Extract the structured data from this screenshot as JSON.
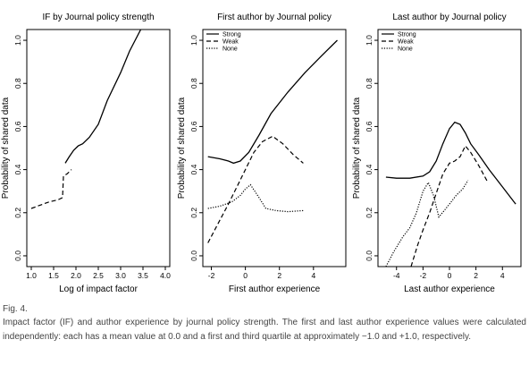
{
  "figure_label": "Fig. 4.",
  "caption": "Impact factor (IF) and author experience by journal policy strength. The first and last author experience values were calculated independently: each has a mean value at 0.0 and a first and third quartile at approximately −1.0 and +1.0, respectively.",
  "colors": {
    "line": "#000000",
    "caption_text": "#444444",
    "background": "#ffffff"
  },
  "chart_data": [
    {
      "type": "line",
      "title": "IF by Journal policy strength",
      "xlabel": "Log of impact factor",
      "ylabel": "Probability of shared data",
      "xlim": [
        0.9,
        4.1
      ],
      "ylim": [
        -0.05,
        1.05
      ],
      "xticks": [
        1.0,
        1.5,
        2.0,
        2.5,
        3.0,
        3.5,
        4.0
      ],
      "xtick_labels": [
        "1.0",
        "1.5",
        "2.0",
        "2.5",
        "3.0",
        "3.5",
        "4.0"
      ],
      "yticks": [
        0.0,
        0.2,
        0.4,
        0.6,
        0.8,
        1.0
      ],
      "ytick_labels": [
        "0.0",
        "0.2",
        "0.4",
        "0.6",
        "0.8",
        "1.0"
      ],
      "legend": null,
      "series": [
        {
          "style": "solid",
          "x": [
            1.76,
            1.85,
            1.95,
            2.05,
            2.15,
            2.3,
            2.5,
            2.7,
            3.0,
            3.2,
            3.45
          ],
          "y": [
            0.43,
            0.46,
            0.49,
            0.51,
            0.52,
            0.55,
            0.61,
            0.72,
            0.85,
            0.95,
            1.05
          ]
        },
        {
          "style": "dashed",
          "x": [
            1.0,
            1.2,
            1.4,
            1.6,
            1.7,
            1.72,
            1.8,
            1.9
          ],
          "y": [
            0.22,
            0.235,
            0.25,
            0.26,
            0.27,
            0.37,
            0.38,
            0.4
          ]
        }
      ]
    },
    {
      "type": "line",
      "title": "First author by Journal policy",
      "xlabel": "First author experience",
      "ylabel": "Probability of shared data",
      "xlim": [
        -2.5,
        5.9
      ],
      "ylim": [
        -0.05,
        1.05
      ],
      "xticks": [
        -2,
        0,
        2,
        4
      ],
      "xtick_labels": [
        "-2",
        "0",
        "2",
        "4"
      ],
      "yticks": [
        0.0,
        0.2,
        0.4,
        0.6,
        0.8,
        1.0
      ],
      "ytick_labels": [
        "0.0",
        "0.2",
        "0.4",
        "0.6",
        "0.8",
        "1.0"
      ],
      "legend": "top-left",
      "series": [
        {
          "name": "Strong",
          "style": "solid",
          "x": [
            -2.2,
            -1.5,
            -1.0,
            -0.7,
            -0.3,
            0.2,
            0.8,
            1.5,
            2.5,
            3.5,
            4.5,
            5.4
          ],
          "y": [
            0.46,
            0.45,
            0.44,
            0.43,
            0.44,
            0.48,
            0.56,
            0.66,
            0.76,
            0.85,
            0.93,
            1.0
          ]
        },
        {
          "name": "Weak",
          "style": "dashed",
          "x": [
            -2.2,
            -1.6,
            -1.0,
            -0.5,
            0.0,
            0.5,
            1.0,
            1.6,
            2.2,
            2.8,
            3.4
          ],
          "y": [
            0.06,
            0.15,
            0.24,
            0.32,
            0.4,
            0.48,
            0.53,
            0.555,
            0.52,
            0.47,
            0.43
          ]
        },
        {
          "name": "None",
          "style": "dotted",
          "x": [
            -2.2,
            -1.5,
            -0.8,
            -0.3,
            0.0,
            0.3,
            0.8,
            1.2,
            1.8,
            2.5,
            3.4
          ],
          "y": [
            0.22,
            0.23,
            0.25,
            0.28,
            0.31,
            0.33,
            0.27,
            0.22,
            0.21,
            0.205,
            0.21
          ]
        }
      ]
    },
    {
      "type": "line",
      "title": "Last author by Journal policy",
      "xlabel": "Last author experience",
      "ylabel": "Probability of shared data",
      "xlim": [
        -5.4,
        5.4
      ],
      "ylim": [
        -0.05,
        1.05
      ],
      "xticks": [
        -4,
        -2,
        0,
        2,
        4
      ],
      "xtick_labels": [
        "-4",
        "-2",
        "0",
        "2",
        "4"
      ],
      "yticks": [
        0.0,
        0.2,
        0.4,
        0.6,
        0.8,
        1.0
      ],
      "ytick_labels": [
        "0.0",
        "0.2",
        "0.4",
        "0.6",
        "0.8",
        "1.0"
      ],
      "legend": "top-left",
      "series": [
        {
          "name": "Strong",
          "style": "solid",
          "x": [
            -4.8,
            -4.0,
            -3.0,
            -2.0,
            -1.5,
            -1.0,
            -0.5,
            0.0,
            0.4,
            0.8,
            1.2,
            1.6,
            2.2,
            3.0,
            4.0,
            5.0
          ],
          "y": [
            0.365,
            0.36,
            0.36,
            0.37,
            0.39,
            0.44,
            0.52,
            0.59,
            0.62,
            0.61,
            0.57,
            0.52,
            0.47,
            0.4,
            0.32,
            0.24
          ]
        },
        {
          "name": "Weak",
          "style": "dashed",
          "x": [
            -2.9,
            -2.4,
            -2.0,
            -1.5,
            -1.0,
            -0.5,
            0.0,
            0.4,
            0.8,
            1.2,
            1.6,
            2.2,
            2.9
          ],
          "y": [
            -0.05,
            0.05,
            0.12,
            0.2,
            0.29,
            0.38,
            0.43,
            0.44,
            0.46,
            0.51,
            0.48,
            0.42,
            0.34
          ]
        },
        {
          "name": "None",
          "style": "dotted",
          "x": [
            -4.8,
            -4.2,
            -3.5,
            -3.0,
            -2.5,
            -2.0,
            -1.6,
            -1.2,
            -0.8,
            -0.4,
            0.0,
            0.5,
            1.0,
            1.4
          ],
          "y": [
            -0.05,
            0.02,
            0.09,
            0.13,
            0.2,
            0.3,
            0.34,
            0.28,
            0.18,
            0.21,
            0.24,
            0.28,
            0.31,
            0.35
          ]
        }
      ]
    }
  ]
}
